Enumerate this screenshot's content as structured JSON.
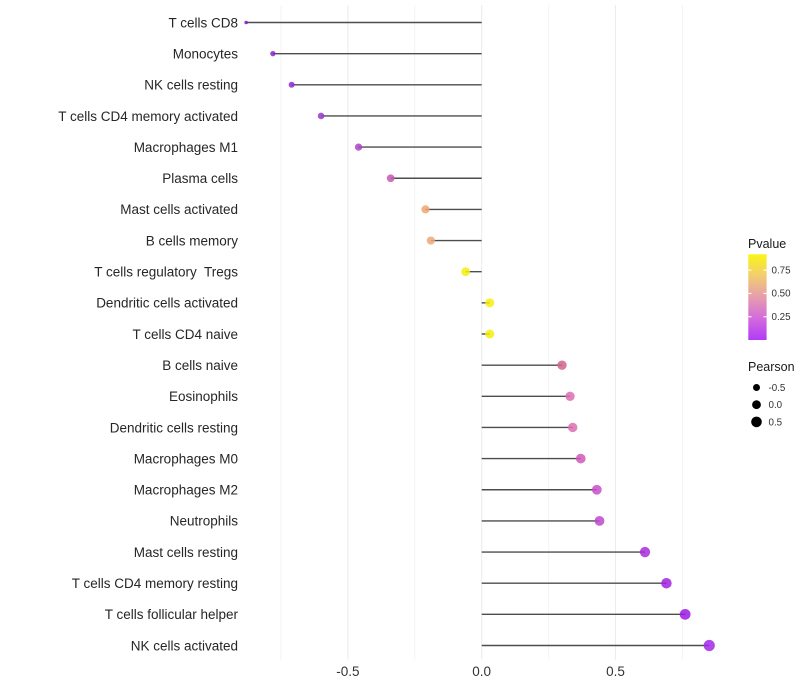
{
  "chart_data": {
    "type": "scatter",
    "variant": "lollipop-horizontal",
    "title": "",
    "xlabel": "",
    "ylabel": "",
    "xlim": [
      -0.97,
      0.93
    ],
    "x_ticks": [
      -0.5,
      0.0,
      0.5
    ],
    "x_tick_labels": [
      "-0.5",
      "0.0",
      "0.5"
    ],
    "x_gridlines": [
      -0.75,
      -0.5,
      -0.25,
      0,
      0.25,
      0.5,
      0.75
    ],
    "grid": "vertical-only",
    "legend_position": "right",
    "categories": [
      "T cells CD8",
      "Monocytes",
      "NK cells resting",
      "T cells CD4 memory activated",
      "Macrophages M1",
      "Plasma cells",
      "Mast cells activated",
      "B cells memory",
      "T cells regulatory  Tregs",
      "Dendritic cells activated",
      "T cells CD4 naive",
      "B cells naive",
      "Eosinophils",
      "Dendritic cells resting",
      "Macrophages M0",
      "Macrophages M2",
      "Neutrophils",
      "Mast cells resting",
      "T cells CD4 memory resting",
      "T cells follicular helper",
      "NK cells activated"
    ],
    "series": [
      {
        "name": "Pearson",
        "values": [
          -0.88,
          -0.78,
          -0.71,
          -0.6,
          -0.46,
          -0.34,
          -0.21,
          -0.19,
          -0.06,
          0.03,
          0.03,
          0.3,
          0.33,
          0.34,
          0.37,
          0.43,
          0.44,
          0.61,
          0.69,
          0.76,
          0.85
        ]
      }
    ],
    "points": [
      {
        "label": "T cells CD8",
        "pearson": -0.88,
        "color": "#7A1BC8",
        "diameter": 3.6
      },
      {
        "label": "Monocytes",
        "pearson": -0.78,
        "color": "#8B22D4",
        "diameter": 5.4
      },
      {
        "label": "NK cells resting",
        "pearson": -0.71,
        "color": "#8E2AD2",
        "diameter": 6.0
      },
      {
        "label": "T cells CD4 memory activated",
        "pearson": -0.6,
        "color": "#9838CC",
        "diameter": 6.6
      },
      {
        "label": "Macrophages M1",
        "pearson": -0.46,
        "color": "#AC43C6",
        "diameter": 7.3
      },
      {
        "label": "Plasma cells",
        "pearson": -0.34,
        "color": "#C45BB2",
        "diameter": 7.8
      },
      {
        "label": "Mast cells activated",
        "pearson": -0.21,
        "color": "#EFA671",
        "diameter": 8.2
      },
      {
        "label": "B cells memory",
        "pearson": -0.19,
        "color": "#EFA878",
        "diameter": 8.2
      },
      {
        "label": "T cells regulatory  Tregs",
        "pearson": -0.06,
        "color": "#F6EF10",
        "diameter": 8.8
      },
      {
        "label": "Dendritic cells activated",
        "pearson": 0.03,
        "color": "#F6EF10",
        "diameter": 9.0
      },
      {
        "label": "T cells CD4 naive",
        "pearson": 0.03,
        "color": "#F6EF10",
        "diameter": 9.0
      },
      {
        "label": "B cells naive",
        "pearson": 0.3,
        "color": "#D4618D",
        "diameter": 9.4
      },
      {
        "label": "Eosinophils",
        "pearson": 0.33,
        "color": "#DC6FB0",
        "diameter": 9.4
      },
      {
        "label": "Dendritic cells resting",
        "pearson": 0.34,
        "color": "#DC6FB0",
        "diameter": 9.4
      },
      {
        "label": "Macrophages M0",
        "pearson": 0.37,
        "color": "#CF58B8",
        "diameter": 9.7
      },
      {
        "label": "Macrophages M2",
        "pearson": 0.43,
        "color": "#C84FC8",
        "diameter": 9.8
      },
      {
        "label": "Neutrophils",
        "pearson": 0.44,
        "color": "#BE48CE",
        "diameter": 9.8
      },
      {
        "label": "Mast cells resting",
        "pearson": 0.61,
        "color": "#A82BDC",
        "diameter": 10.3
      },
      {
        "label": "T cells CD4 memory resting",
        "pearson": 0.69,
        "color": "#A021E0",
        "diameter": 10.5
      },
      {
        "label": "T cells follicular helper",
        "pearson": 0.76,
        "color": "#9C1BE2",
        "diameter": 10.8
      },
      {
        "label": "NK cells activated",
        "pearson": 0.85,
        "color": "#A229E8",
        "diameter": 11.2
      }
    ]
  },
  "legends": {
    "pvalue": {
      "title": "Pvalue",
      "range": [
        0,
        0.92
      ],
      "ticks": [
        {
          "label": "0.75",
          "value": 0.75
        },
        {
          "label": "0.50",
          "value": 0.5
        },
        {
          "label": "0.25",
          "value": 0.25
        }
      ],
      "gradient_top_to_bottom": [
        "#FAF515",
        "#F2CD70",
        "#E69DAD",
        "#D26BDC",
        "#B23BF7"
      ]
    },
    "pearson": {
      "title": "Pearson",
      "items": [
        {
          "label": "-0.5",
          "diameter": 7.0
        },
        {
          "label": "0.0",
          "diameter": 8.8
        },
        {
          "label": "0.5",
          "diameter": 10.6
        }
      ]
    }
  },
  "colors": {
    "background": "#FFFFFF",
    "stem": "#4D4D4D",
    "grid_major": "#EBEBEB",
    "grid_minor": "#F4F4F4",
    "axis_text": "#333333",
    "label_text": "#262626",
    "legend_dot": "#000000"
  }
}
